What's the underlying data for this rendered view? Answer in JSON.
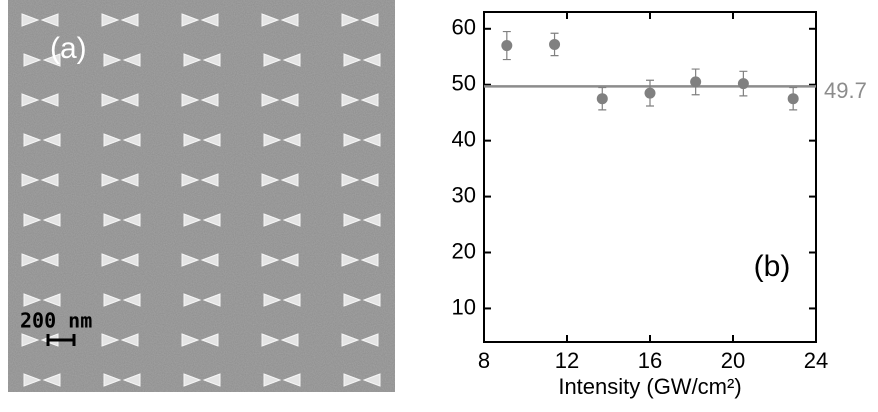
{
  "panel_a": {
    "label": "(a)",
    "scale_bar": "200 nm"
  },
  "chart_data": {
    "type": "scatter",
    "x_label": "Intensity (GW/cm²)",
    "annotation": "(b)",
    "x": [
      9.1,
      11.4,
      13.7,
      16.0,
      18.2,
      20.5,
      22.9
    ],
    "series": [
      {
        "color": "#808080",
        "values": [
          57.0,
          57.2,
          47.5,
          48.5,
          50.5,
          50.2,
          47.5
        ],
        "errors": [
          2.5,
          2.0,
          2.0,
          2.3,
          2.3,
          2.2,
          2.0
        ]
      }
    ],
    "reference_line": {
      "value": 49.7,
      "color": "#8c8c8c"
    },
    "xlim": [
      8,
      24
    ],
    "xticks": [
      8,
      12,
      16,
      20,
      24
    ],
    "ylim": [
      4,
      63
    ],
    "yticks": [
      10,
      20,
      30,
      40,
      50,
      60
    ]
  }
}
